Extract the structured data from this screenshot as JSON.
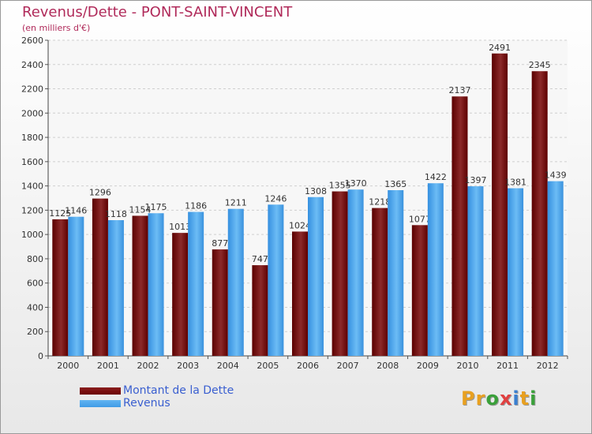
{
  "title": "Revenus/Dette - PONT-SAINT-VINCENT",
  "subtitle": "(en milliers d'€)",
  "logo_text": "Proxiti",
  "colors": {
    "dette": "#6b0000",
    "revenus": "#3f9be6",
    "title": "#b02a5a",
    "legend_text": "#3a5fd0"
  },
  "chart_data": {
    "type": "bar",
    "categories": [
      "2000",
      "2001",
      "2002",
      "2003",
      "2004",
      "2005",
      "2006",
      "2007",
      "2008",
      "2009",
      "2010",
      "2011",
      "2012"
    ],
    "series": [
      {
        "name": "Montant de la Dette",
        "values": [
          1125,
          1296,
          1154,
          1013,
          877,
          747,
          1024,
          1355,
          1218,
          1077,
          2137,
          2491,
          2345
        ]
      },
      {
        "name": "Revenus",
        "values": [
          1146,
          1118,
          1175,
          1186,
          1211,
          1246,
          1308,
          1370,
          1365,
          1422,
          1397,
          1381,
          1439
        ]
      }
    ],
    "ylim": [
      0,
      2600
    ],
    "yticks": [
      0,
      200,
      400,
      600,
      800,
      1000,
      1200,
      1400,
      1600,
      1800,
      2000,
      2200,
      2400,
      2600
    ],
    "grid": true,
    "legend_position": "bottom-left"
  }
}
